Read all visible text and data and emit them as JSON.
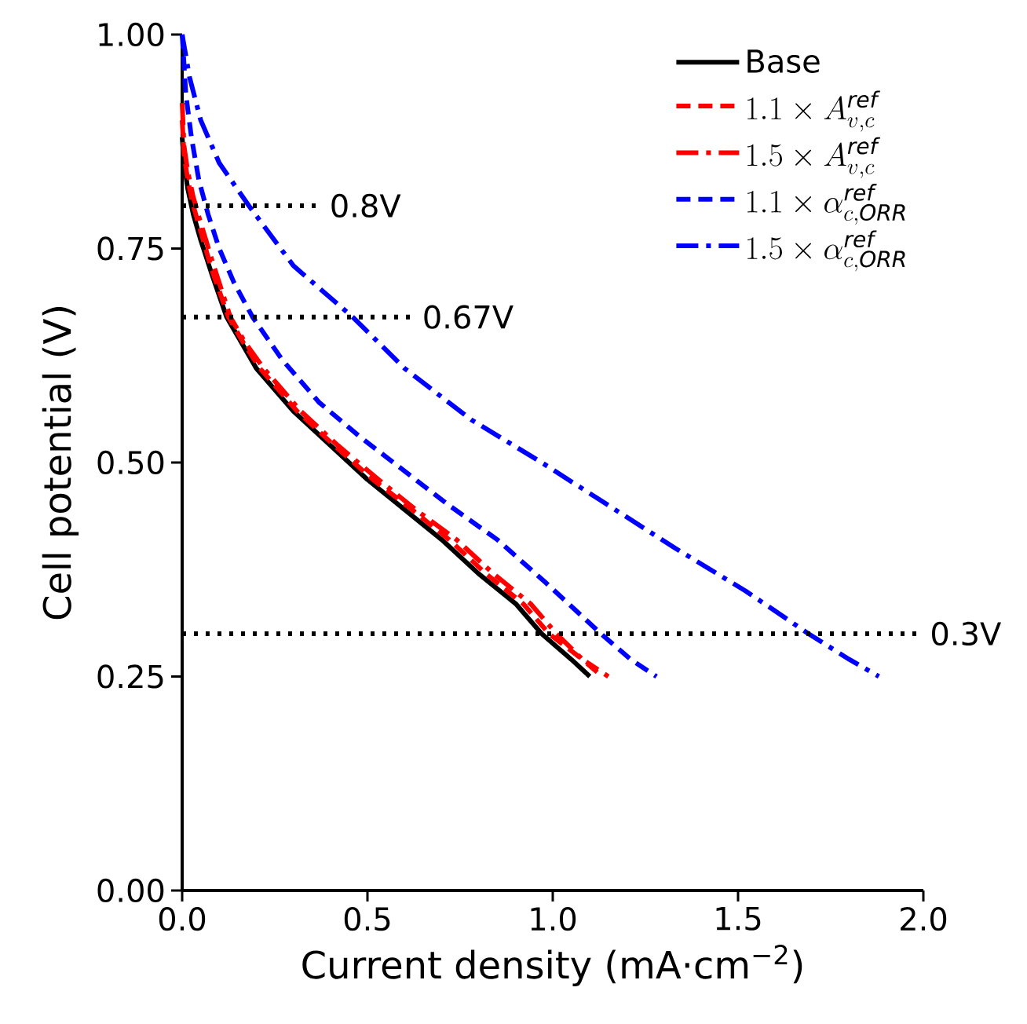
{
  "chart_data": {
    "type": "line",
    "xlabel": "Current density (mA·cm$^{−2}$)",
    "ylabel": "Cell potential (V)",
    "xlim": [
      0,
      2.0
    ],
    "ylim": [
      0,
      1.0
    ],
    "xticks": [
      {
        "value": 0,
        "label": "0.0"
      },
      {
        "value": 0.5,
        "label": "0.5"
      },
      {
        "value": 1.0,
        "label": "1.0"
      },
      {
        "value": 1.5,
        "label": "1.5"
      },
      {
        "value": 2.0,
        "label": "2.0"
      }
    ],
    "yticks": [
      {
        "value": 0,
        "label": "0.00"
      },
      {
        "value": 0.25,
        "label": "0.25"
      },
      {
        "value": 0.5,
        "label": "0.50"
      },
      {
        "value": 0.75,
        "label": "0.75"
      },
      {
        "value": 1.0,
        "label": "1.00"
      }
    ],
    "legend": "top right",
    "grid": false,
    "series": [
      {
        "name": "Base",
        "color": "#000000",
        "line_style": "solid",
        "x": [
          0.0,
          0.005,
          0.015,
          0.03,
          0.05,
          0.08,
          0.12,
          0.16,
          0.2,
          0.25,
          0.3,
          0.4,
          0.5,
          0.6,
          0.7,
          0.8,
          0.9,
          0.97,
          1.05,
          1.1
        ],
        "values": [
          0.88,
          0.85,
          0.82,
          0.79,
          0.76,
          0.72,
          0.67,
          0.64,
          0.61,
          0.585,
          0.56,
          0.52,
          0.48,
          0.445,
          0.41,
          0.37,
          0.335,
          0.3,
          0.27,
          0.25
        ]
      },
      {
        "name": "1.1\\times A^{\\mathit{ref}}_{v,c}",
        "color": "#ff0000",
        "line_style": "dashed",
        "x": [
          0.0,
          0.005,
          0.015,
          0.03,
          0.05,
          0.08,
          0.125,
          0.165,
          0.21,
          0.26,
          0.31,
          0.41,
          0.515,
          0.62,
          0.72,
          0.82,
          0.92,
          0.99,
          1.08,
          1.15
        ],
        "values": [
          0.9,
          0.86,
          0.83,
          0.8,
          0.77,
          0.725,
          0.67,
          0.64,
          0.61,
          0.585,
          0.56,
          0.52,
          0.48,
          0.445,
          0.41,
          0.37,
          0.335,
          0.3,
          0.27,
          0.25
        ]
      },
      {
        "name": "1.5\\times A^{\\mathit{ref}}_{v,c}",
        "color": "#ff0000",
        "line_style": "dashdot",
        "x": [
          0.0,
          0.005,
          0.015,
          0.03,
          0.05,
          0.085,
          0.13,
          0.17,
          0.22,
          0.27,
          0.32,
          0.42,
          0.53,
          0.63,
          0.74,
          0.84,
          0.94,
          1.01,
          1.08,
          1.12
        ],
        "values": [
          0.92,
          0.87,
          0.84,
          0.81,
          0.78,
          0.73,
          0.67,
          0.64,
          0.61,
          0.585,
          0.56,
          0.52,
          0.48,
          0.445,
          0.41,
          0.37,
          0.335,
          0.3,
          0.27,
          0.255
        ]
      },
      {
        "name": "1.1\\times \\alpha^{\\mathit{ref}}_{c,\\mathit{ORR}}",
        "color": "#0000ff",
        "line_style": "dashed",
        "x": [
          0.0,
          0.01,
          0.025,
          0.045,
          0.07,
          0.1,
          0.14,
          0.19,
          0.27,
          0.37,
          0.48,
          0.6,
          0.72,
          0.85,
          0.98,
          1.13,
          1.21,
          1.28
        ],
        "values": [
          1.0,
          0.93,
          0.88,
          0.83,
          0.79,
          0.75,
          0.71,
          0.67,
          0.62,
          0.57,
          0.53,
          0.49,
          0.45,
          0.41,
          0.36,
          0.3,
          0.27,
          0.25
        ]
      },
      {
        "name": "1.5\\times \\alpha^{\\mathit{ref}}_{c,\\mathit{ORR}}",
        "color": "#0000ff",
        "line_style": "dashdot",
        "x": [
          0.0,
          0.02,
          0.05,
          0.1,
          0.18,
          0.3,
          0.46,
          0.6,
          0.78,
          0.97,
          1.15,
          1.33,
          1.52,
          1.69,
          1.8,
          1.88
        ],
        "values": [
          1.0,
          0.95,
          0.9,
          0.85,
          0.8,
          0.73,
          0.67,
          0.61,
          0.55,
          0.5,
          0.45,
          0.4,
          0.35,
          0.3,
          0.27,
          0.25
        ]
      }
    ],
    "ref_lines": [
      {
        "axis": "y",
        "value": 0.8,
        "color": "#000000",
        "line_style": "dotted"
      },
      {
        "axis": "y",
        "value": 0.67,
        "color": "#000000",
        "line_style": "dotted"
      },
      {
        "axis": "y",
        "value": 0.3,
        "color": "#000000",
        "line_style": "dotted"
      }
    ],
    "annotations": [
      {
        "text": "0.8V",
        "x": 0.38,
        "y": 0.8
      },
      {
        "text": "0.67V",
        "x": 0.63,
        "y": 0.67
      },
      {
        "text": "0.3V",
        "x": 2.0,
        "y": 0.3
      }
    ]
  }
}
